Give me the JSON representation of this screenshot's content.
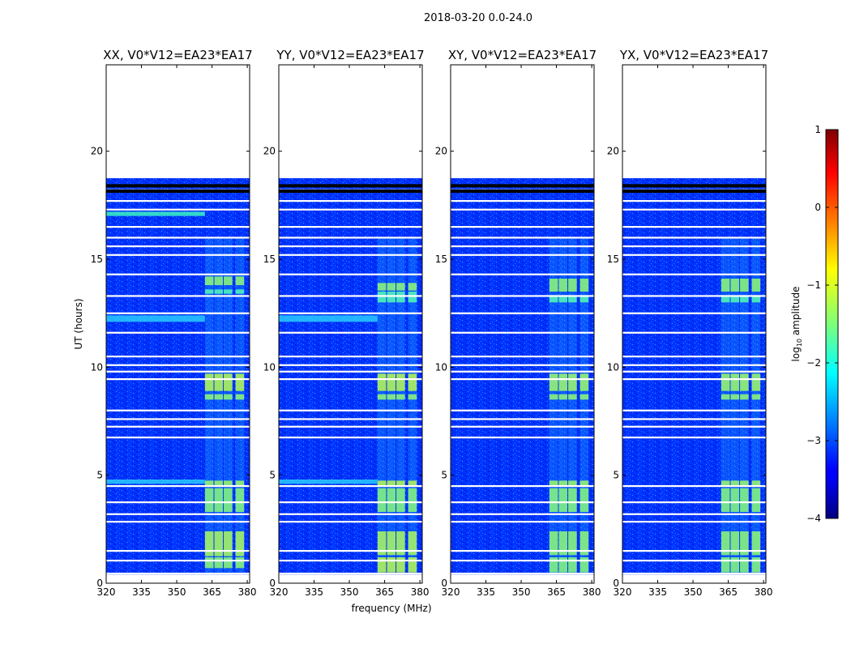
{
  "figure_title": "2018-03-20 0.0-24.0",
  "colors": {
    "background_fill": "#0000ff",
    "axis": "#000000",
    "flag_row": "#ffffff",
    "dark_row": "#000000"
  },
  "chart_data": {
    "type": "heatmap",
    "shared_xlabel": "frequency (MHz)",
    "shared_ylabel": "UT (hours)",
    "xlim": [
      320,
      381
    ],
    "ylim": [
      0,
      24
    ],
    "xticks": [
      320,
      335,
      350,
      365,
      380
    ],
    "yticks": [
      0,
      5,
      10,
      15,
      20
    ],
    "data_extent_hours": [
      0.4,
      18.75
    ],
    "white_flag_rows_ut": [
      0.45,
      1.05,
      1.5,
      2.85,
      3.2,
      3.75,
      4.5,
      6.75,
      7.25,
      7.6,
      8.0,
      9.45,
      9.8,
      10.1,
      10.5,
      11.6,
      12.5,
      13.3,
      14.3,
      15.2,
      15.6,
      16.0,
      16.5,
      17.3,
      17.7,
      18.2
    ],
    "black_flag_rows_ut": [
      18.15,
      18.4
    ],
    "panels": [
      {
        "title": "XX, V0*V12=EA23*EA17",
        "bright_bands_mhz": [
          [
            362,
            366
          ],
          [
            366,
            370
          ],
          [
            370,
            374
          ],
          [
            375,
            379
          ]
        ],
        "bright_hours": [
          [
            0.7,
            1.2,
            "#a5ff52"
          ],
          [
            1.25,
            2.4,
            "#c8ff35"
          ],
          [
            3.3,
            4.4,
            "#9cff5b"
          ],
          [
            4.5,
            4.75,
            "#b8ff44"
          ],
          [
            8.5,
            8.75,
            "#a5ff52"
          ],
          [
            8.9,
            9.7,
            "#d7ff26"
          ],
          [
            13.4,
            13.6,
            "#5bffa3"
          ],
          [
            13.8,
            14.2,
            "#a5ff52"
          ]
        ],
        "low_freq_lines_hours": [
          [
            4.6,
            4.8,
            "#2cd4ff"
          ],
          [
            12.1,
            12.4,
            "#2cd4ff"
          ],
          [
            17.0,
            17.2,
            "#40ffbf"
          ]
        ]
      },
      {
        "title": "YY, V0*V12=EA23*EA17",
        "bright_bands_mhz": [
          [
            362,
            366
          ],
          [
            366,
            370
          ],
          [
            370,
            374
          ],
          [
            375,
            379
          ]
        ],
        "bright_hours": [
          [
            0.5,
            1.2,
            "#d7ff26"
          ],
          [
            1.3,
            2.4,
            "#c8ff35"
          ],
          [
            3.3,
            4.4,
            "#9cff5b"
          ],
          [
            4.5,
            4.75,
            "#d7ff26"
          ],
          [
            8.5,
            8.75,
            "#a5ff52"
          ],
          [
            8.9,
            9.7,
            "#d7ff26"
          ],
          [
            13.0,
            13.5,
            "#5bffa3"
          ],
          [
            13.55,
            13.9,
            "#a5ff52"
          ]
        ],
        "low_freq_lines_hours": [
          [
            4.6,
            4.8,
            "#2cd4ff"
          ],
          [
            12.1,
            12.4,
            "#2cd4ff"
          ]
        ]
      },
      {
        "title": "XY, V0*V12=EA23*EA17",
        "bright_bands_mhz": [
          [
            362,
            366
          ],
          [
            366,
            370
          ],
          [
            370,
            374
          ],
          [
            375,
            379
          ]
        ],
        "bright_hours": [
          [
            0.5,
            1.2,
            "#9cff5b"
          ],
          [
            1.3,
            2.4,
            "#a5ff52"
          ],
          [
            3.3,
            4.4,
            "#9cff5b"
          ],
          [
            4.5,
            4.75,
            "#b8ff44"
          ],
          [
            8.5,
            8.75,
            "#a5ff52"
          ],
          [
            8.9,
            9.7,
            "#b8ff44"
          ],
          [
            13.0,
            13.3,
            "#5bffa3"
          ],
          [
            13.5,
            14.1,
            "#a5ff52"
          ]
        ],
        "low_freq_lines_hours": []
      },
      {
        "title": "YX, V0*V12=EA23*EA17",
        "bright_bands_mhz": [
          [
            362,
            366
          ],
          [
            366,
            370
          ],
          [
            370,
            374
          ],
          [
            375,
            379
          ]
        ],
        "bright_hours": [
          [
            0.5,
            1.2,
            "#9cff5b"
          ],
          [
            1.3,
            2.4,
            "#a5ff52"
          ],
          [
            3.3,
            4.4,
            "#9cff5b"
          ],
          [
            4.5,
            4.75,
            "#b8ff44"
          ],
          [
            8.5,
            8.75,
            "#a5ff52"
          ],
          [
            8.9,
            9.7,
            "#b8ff44"
          ],
          [
            13.0,
            13.3,
            "#5bffa3"
          ],
          [
            13.5,
            14.1,
            "#a5ff52"
          ]
        ],
        "low_freq_lines_hours": []
      }
    ],
    "colorbar": {
      "label": "log",
      "label_sub": "10",
      "label_suffix": " amplitude",
      "range": [
        -4,
        1
      ],
      "ticks": [
        1,
        0,
        -1,
        -2,
        -3,
        -4
      ],
      "tick_labels": [
        "1",
        "0",
        "−1",
        "−2",
        "−3",
        "−4"
      ],
      "colormap": "jet"
    }
  }
}
